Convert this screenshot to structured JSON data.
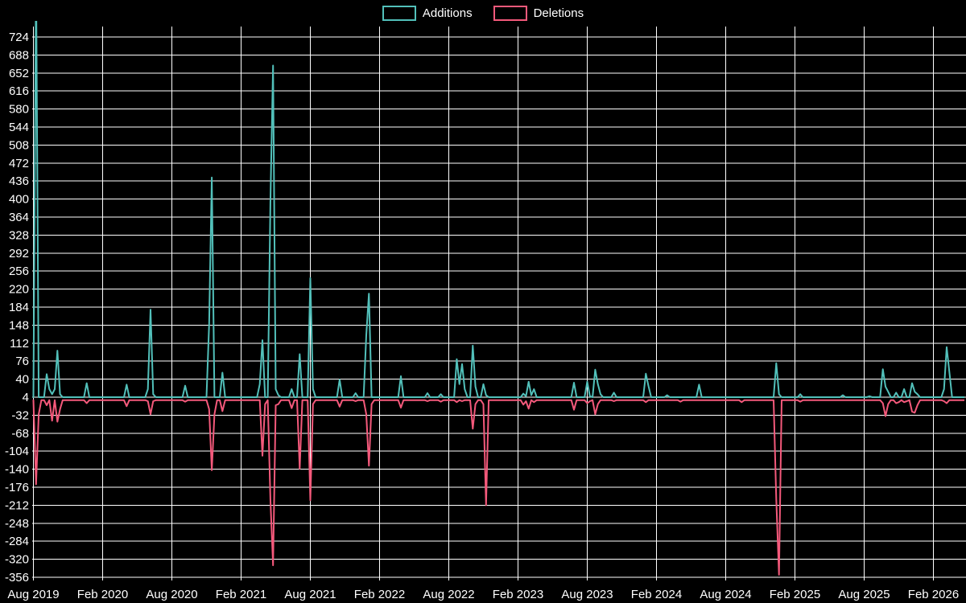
{
  "legend": [
    {
      "label": "Additions",
      "color": "#52c0ba"
    },
    {
      "label": "Deletions",
      "color": "#f4597b"
    }
  ],
  "chart_data": {
    "type": "line",
    "title": "",
    "xlabel": "",
    "ylabel": "",
    "legend_position": "top-center",
    "grid": true,
    "background_color": "#000000",
    "gridline_color": "#ffffff",
    "text_color": "#ffffff",
    "series_colors": {
      "additions": "#52c0ba",
      "deletions": "#f4597b"
    },
    "ylim": [
      -356,
      745
    ],
    "y_ticks": [
      724,
      688,
      652,
      616,
      580,
      544,
      508,
      472,
      436,
      400,
      364,
      328,
      292,
      256,
      220,
      184,
      148,
      112,
      76,
      40,
      4,
      -32,
      -68,
      -104,
      -140,
      -176,
      -212,
      -248,
      -284,
      -320,
      -356
    ],
    "x_labels": [
      "Aug 2019",
      "Feb 2020",
      "Aug 2020",
      "Feb 2021",
      "Aug 2021",
      "Feb 2022",
      "Aug 2022",
      "Feb 2023",
      "Aug 2023",
      "Feb 2024",
      "Aug 2024",
      "Feb 2025",
      "Aug 2025",
      "Feb 2026"
    ],
    "x_unit": "week",
    "weeks_total": 350,
    "weeks_per_label_interval": 26,
    "baseline": {
      "additions": 4,
      "deletions": -2
    },
    "series": [
      {
        "name": "Additions"
      },
      {
        "name": "Deletions"
      }
    ],
    "points_format": [
      "week_index",
      "additions",
      "deletions"
    ],
    "points": [
      [
        1,
        850,
        -170
      ],
      [
        2,
        4,
        -30
      ],
      [
        5,
        50,
        -12
      ],
      [
        6,
        20,
        -2
      ],
      [
        7,
        10,
        -43
      ],
      [
        8,
        20,
        -2
      ],
      [
        9,
        97,
        -45
      ],
      [
        10,
        10,
        -20
      ],
      [
        20,
        32,
        -8
      ],
      [
        35,
        29,
        -14
      ],
      [
        43,
        20,
        -4
      ],
      [
        44,
        179,
        -30
      ],
      [
        45,
        10,
        -4
      ],
      [
        57,
        27,
        -5
      ],
      [
        66,
        150,
        -20
      ],
      [
        67,
        443,
        -142
      ],
      [
        68,
        4,
        -30
      ],
      [
        71,
        53,
        -24
      ],
      [
        85,
        30,
        -2
      ],
      [
        86,
        118,
        -113
      ],
      [
        87,
        4,
        -10
      ],
      [
        89,
        392,
        -200
      ],
      [
        90,
        667,
        -332
      ],
      [
        91,
        20,
        -12
      ],
      [
        92,
        8,
        -10
      ],
      [
        97,
        20,
        -18
      ],
      [
        100,
        90,
        -139
      ],
      [
        104,
        242,
        -202
      ],
      [
        105,
        20,
        -10
      ],
      [
        115,
        39,
        -15
      ],
      [
        121,
        12,
        -4
      ],
      [
        125,
        128,
        -30
      ],
      [
        126,
        211,
        -133
      ],
      [
        127,
        4,
        -10
      ],
      [
        138,
        46,
        -17
      ],
      [
        148,
        12,
        -4
      ],
      [
        153,
        10,
        -5
      ],
      [
        159,
        80,
        -6
      ],
      [
        160,
        30,
        -2
      ],
      [
        161,
        70,
        -4
      ],
      [
        162,
        20,
        -2
      ],
      [
        165,
        107,
        -59
      ],
      [
        166,
        25,
        -10
      ],
      [
        169,
        30,
        -10
      ],
      [
        170,
        8,
        -212
      ],
      [
        184,
        11,
        -11
      ],
      [
        185,
        6,
        -4
      ],
      [
        186,
        35,
        -19
      ],
      [
        187,
        8,
        -2
      ],
      [
        188,
        20,
        -6
      ],
      [
        203,
        33,
        -21
      ],
      [
        208,
        35,
        -8
      ],
      [
        209,
        6,
        -4
      ],
      [
        211,
        59,
        -30
      ],
      [
        212,
        30,
        -10
      ],
      [
        213,
        10,
        -2
      ],
      [
        218,
        13,
        -4
      ],
      [
        230,
        51,
        -6
      ],
      [
        231,
        26,
        -2
      ],
      [
        238,
        8,
        -2
      ],
      [
        243,
        4,
        -5
      ],
      [
        250,
        29,
        -2
      ],
      [
        266,
        4,
        -6
      ],
      [
        279,
        72,
        -200
      ],
      [
        280,
        10,
        -351
      ],
      [
        288,
        10,
        -5
      ],
      [
        304,
        8,
        -2
      ],
      [
        314,
        6,
        -2
      ],
      [
        319,
        60,
        -8
      ],
      [
        320,
        25,
        -34
      ],
      [
        321,
        15,
        -10
      ],
      [
        324,
        13,
        -8
      ],
      [
        325,
        4,
        -6
      ],
      [
        327,
        20,
        -6
      ],
      [
        328,
        4,
        -4
      ],
      [
        330,
        32,
        -25
      ],
      [
        331,
        15,
        -27
      ],
      [
        332,
        10,
        -12
      ],
      [
        342,
        20,
        -4
      ],
      [
        343,
        104,
        -8
      ],
      [
        344,
        55,
        -2
      ]
    ]
  }
}
